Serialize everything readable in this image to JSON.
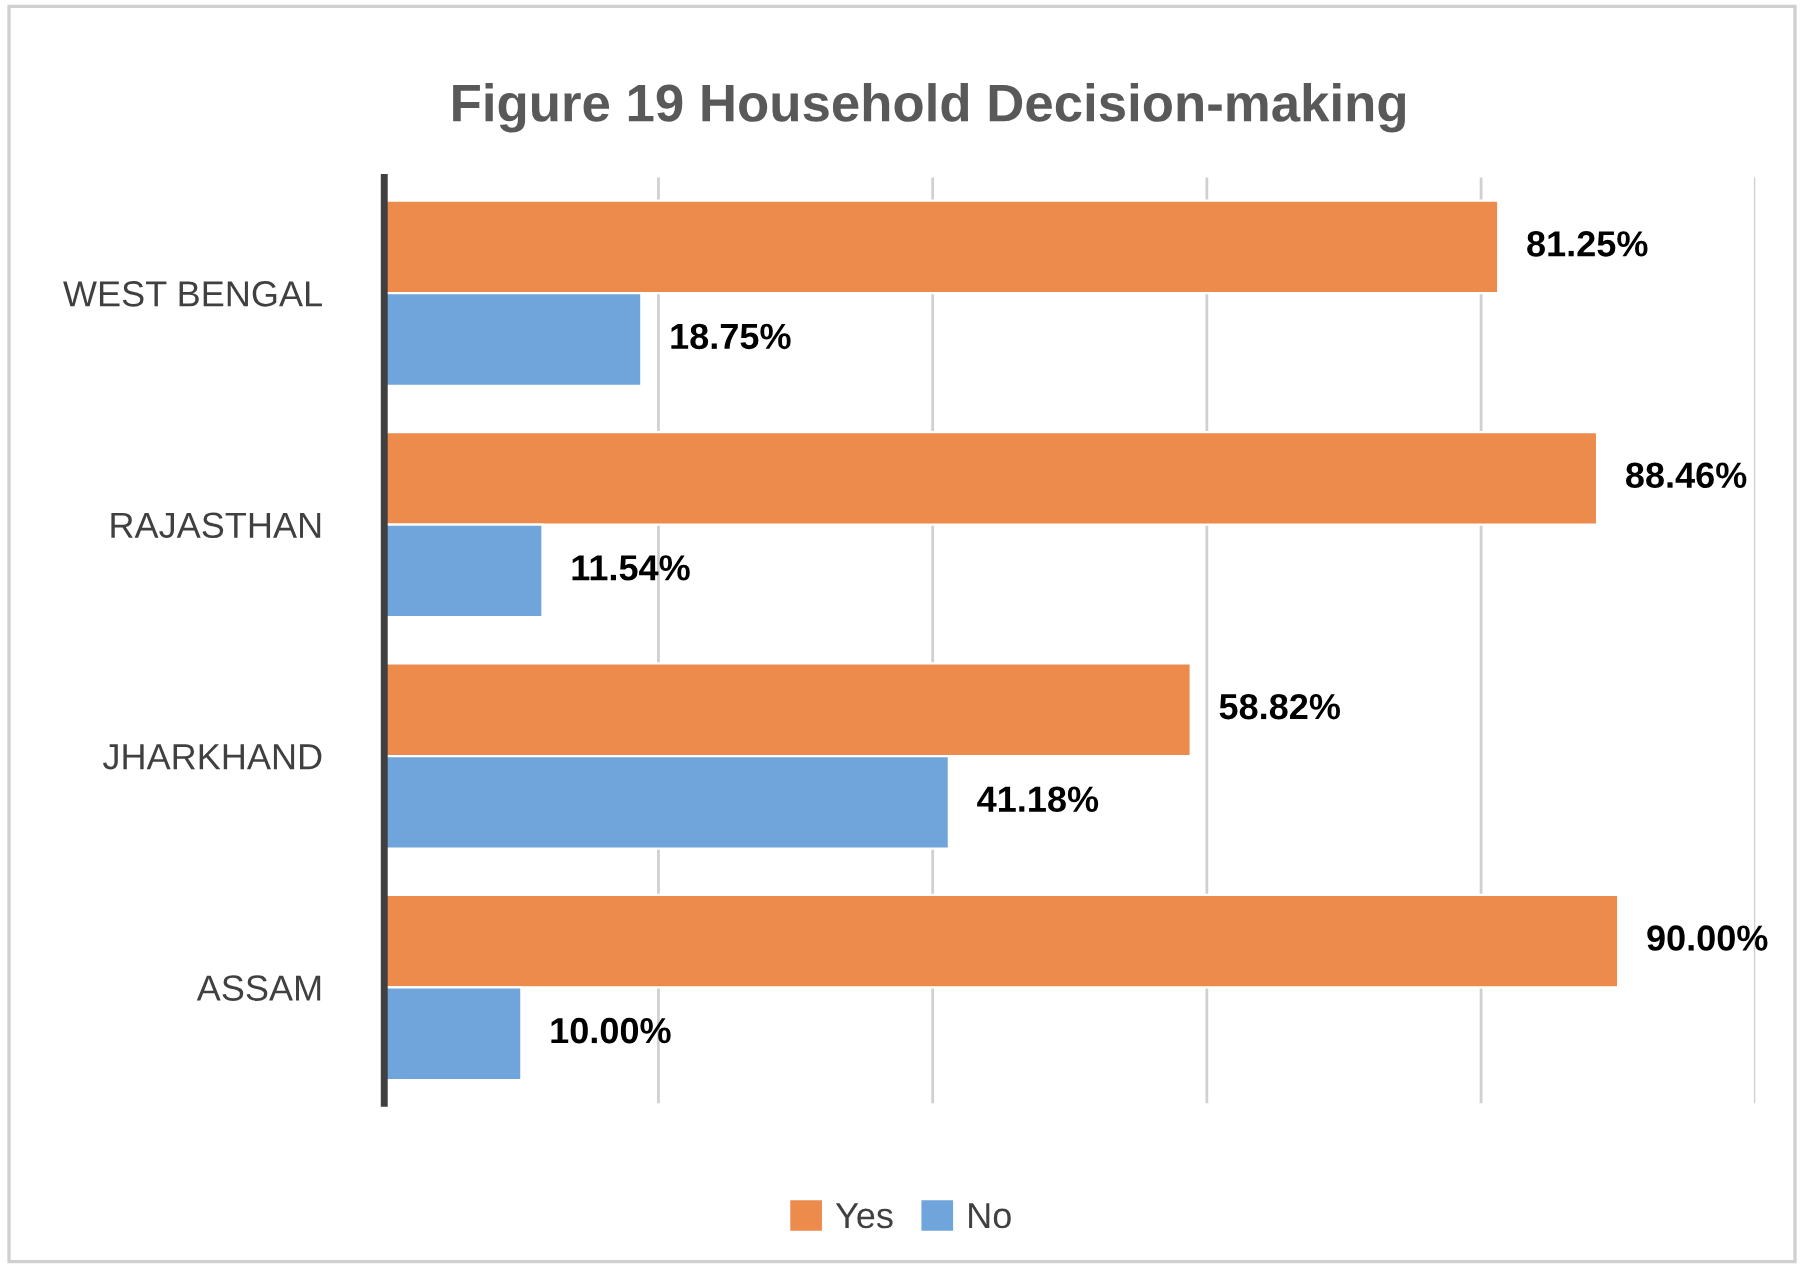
{
  "chart_data": {
    "type": "bar",
    "orientation": "horizontal",
    "title": "Figure 19 Household Decision-making",
    "categories": [
      "WEST BENGAL",
      "RAJASTHAN",
      "JHARKHAND",
      "ASSAM"
    ],
    "series": [
      {
        "name": "Yes",
        "color": "#ed8b4c",
        "values": [
          81.25,
          88.46,
          58.82,
          90.0
        ],
        "value_labels": [
          "81.25%",
          "88.46%",
          "58.82%",
          "90.00%"
        ]
      },
      {
        "name": "No",
        "color": "#6fa5da",
        "values": [
          18.75,
          11.54,
          41.18,
          10.0
        ],
        "value_labels": [
          "18.75%",
          "11.54%",
          "41.18%",
          "10.00%"
        ]
      }
    ],
    "xlim": [
      0,
      100
    ],
    "xticks": [
      {
        "value": 0,
        "label": null
      },
      {
        "value": 20,
        "label": null
      },
      {
        "value": 40,
        "label": null
      },
      {
        "value": 60,
        "label": null
      },
      {
        "value": 80,
        "label": null
      },
      {
        "value": 100,
        "label": null
      }
    ],
    "tick_labels": "y",
    "grid": "x",
    "legend": "bottom"
  }
}
